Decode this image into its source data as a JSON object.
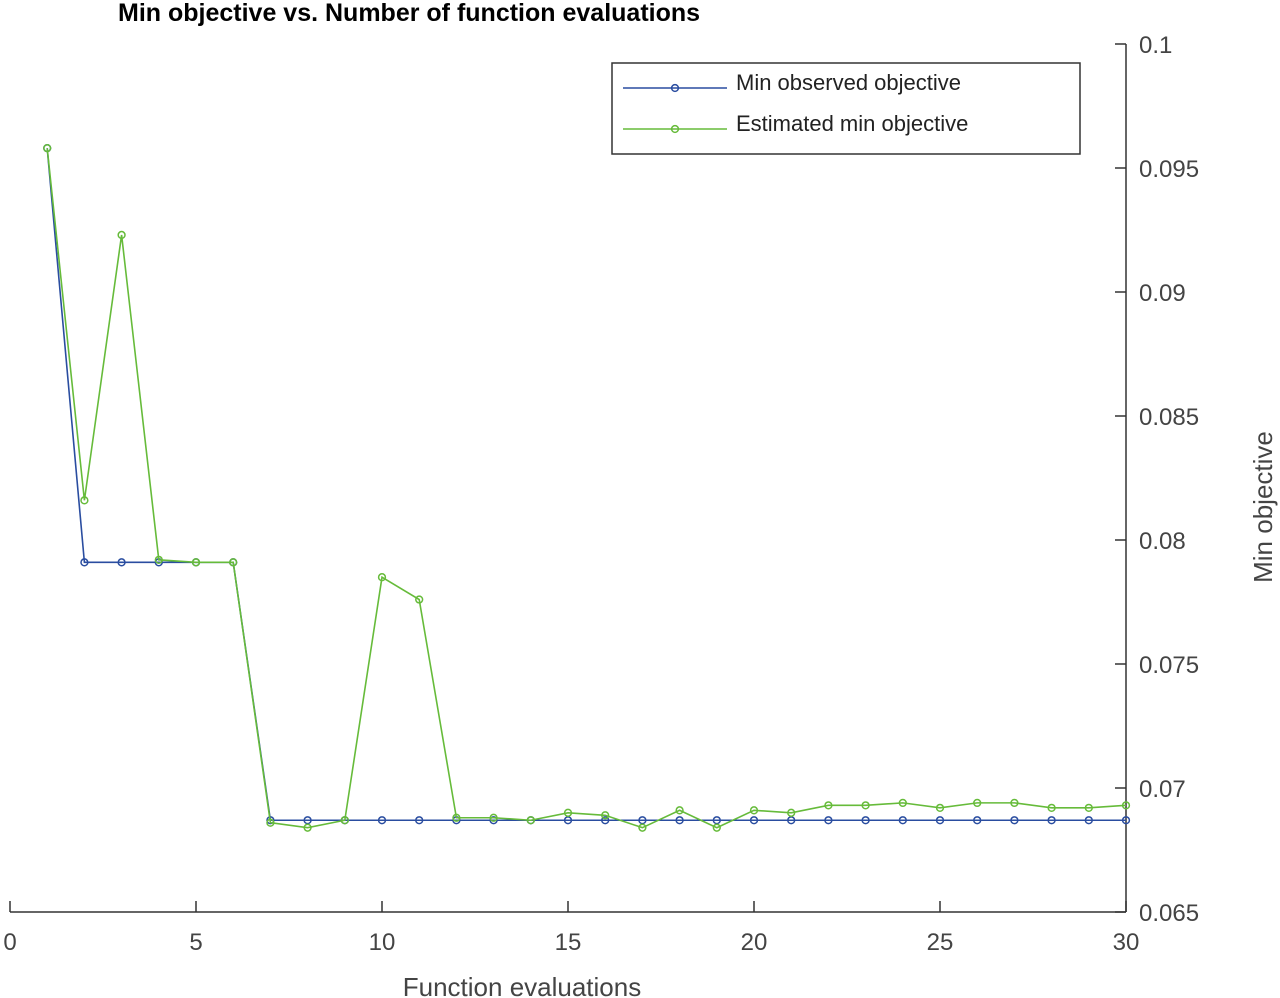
{
  "chart_data": {
    "type": "line",
    "title": "Min objective vs. Number of function evaluations",
    "xlabel": "Function evaluations",
    "ylabel": "Min objective",
    "xlim": [
      0,
      30
    ],
    "ylim": [
      0.065,
      0.1
    ],
    "xticks": [
      "0",
      "5",
      "10",
      "15",
      "20",
      "25",
      "30"
    ],
    "yticks": [
      "0.065",
      "0.07",
      "0.075",
      "0.08",
      "0.085",
      "0.09",
      "0.095",
      "0.1"
    ],
    "grid": false,
    "y_axis_side": "right",
    "legend_position": "top-right",
    "x": [
      1,
      2,
      3,
      4,
      5,
      6,
      7,
      8,
      9,
      10,
      11,
      12,
      13,
      14,
      15,
      16,
      17,
      18,
      19,
      20,
      21,
      22,
      23,
      24,
      25,
      26,
      27,
      28,
      29,
      30
    ],
    "series": [
      {
        "name": "Min observed objective",
        "color": "#2a4da0",
        "marker": "circle",
        "values": [
          0.0958,
          0.0791,
          0.0791,
          0.0791,
          0.0791,
          0.0791,
          0.0687,
          0.0687,
          0.0687,
          0.0687,
          0.0687,
          0.0687,
          0.0687,
          0.0687,
          0.0687,
          0.0687,
          0.0687,
          0.0687,
          0.0687,
          0.0687,
          0.0687,
          0.0687,
          0.0687,
          0.0687,
          0.0687,
          0.0687,
          0.0687,
          0.0687,
          0.0687,
          0.0687
        ]
      },
      {
        "name": "Estimated min objective",
        "color": "#66bb3a",
        "marker": "circle",
        "values": [
          0.0958,
          0.0816,
          0.0923,
          0.0792,
          0.0791,
          0.0791,
          0.0686,
          0.0684,
          0.0687,
          0.0785,
          0.0776,
          0.0688,
          0.0688,
          0.0687,
          0.069,
          0.0689,
          0.0684,
          0.0691,
          0.0684,
          0.0691,
          0.069,
          0.0693,
          0.0693,
          0.0694,
          0.0692,
          0.0694,
          0.0694,
          0.0692,
          0.0692,
          0.0693
        ]
      }
    ]
  }
}
